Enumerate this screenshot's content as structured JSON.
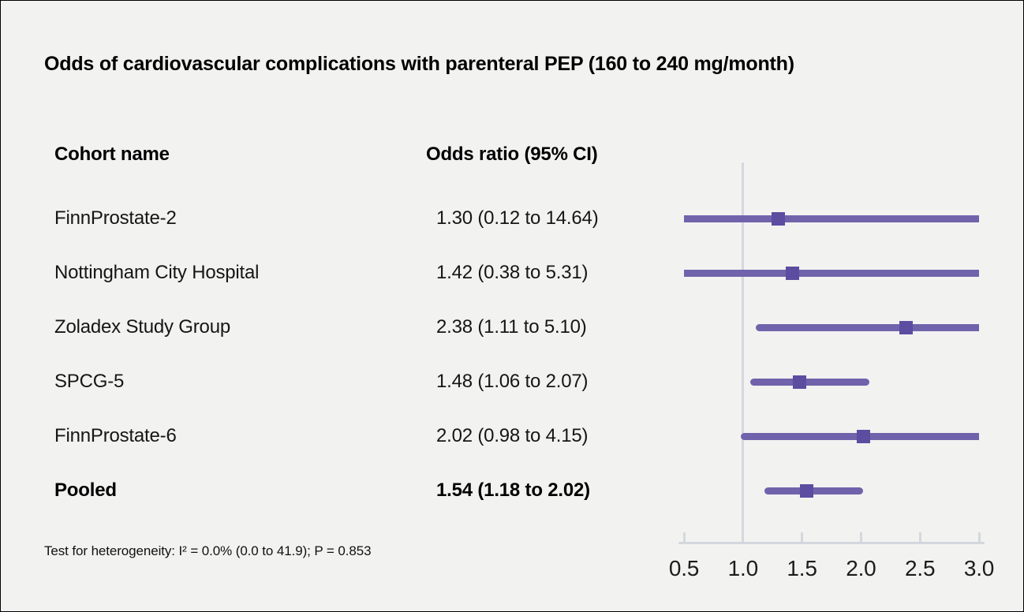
{
  "title": "Odds of cardiovascular complications with parenteral PEP (160 to 240 mg/month)",
  "table": {
    "col1_header": "Cohort name",
    "col2_header": "Odds ratio (95% CI)",
    "rows": [
      {
        "name": "FinnProstate-2",
        "value": "1.30 (0.12 to 14.64)",
        "bold": false
      },
      {
        "name": "Nottingham City Hospital",
        "value": "1.42 (0.38 to 5.31)",
        "bold": false
      },
      {
        "name": "Zoladex Study Group",
        "value": "2.38 (1.11 to 5.10)",
        "bold": false
      },
      {
        "name": "SPCG-5",
        "value": "1.48 (1.06 to 2.07)",
        "bold": false
      },
      {
        "name": "FinnProstate-6",
        "value": "2.02 (0.98 to 4.15)",
        "bold": false
      },
      {
        "name": "Pooled",
        "value": "1.54 (1.18 to 2.02)",
        "bold": true
      }
    ]
  },
  "footnote": "Test for heterogeneity: I² = 0.0% (0.0 to 41.9); P = 0.853",
  "chart_data": {
    "type": "forest",
    "title": "Odds of cardiovascular complications with parenteral PEP (160 to 240 mg/month)",
    "xlim": [
      0.5,
      3.0
    ],
    "ticks": [
      0.5,
      1.0,
      1.5,
      2.0,
      2.5,
      3.0
    ],
    "tick_labels": [
      "0.5",
      "1.0",
      "1.5",
      "2.0",
      "2.5",
      "3.0"
    ],
    "reference_line": 1.0,
    "series": [
      {
        "name": "FinnProstate-2",
        "or": 1.3,
        "ci_low": 0.12,
        "ci_high": 14.64,
        "pooled": false
      },
      {
        "name": "Nottingham City Hospital",
        "or": 1.42,
        "ci_low": 0.38,
        "ci_high": 5.31,
        "pooled": false
      },
      {
        "name": "Zoladex Study Group",
        "or": 2.38,
        "ci_low": 1.11,
        "ci_high": 5.1,
        "pooled": false
      },
      {
        "name": "SPCG-5",
        "or": 1.48,
        "ci_low": 1.06,
        "ci_high": 2.07,
        "pooled": false
      },
      {
        "name": "FinnProstate-6",
        "or": 2.02,
        "ci_low": 0.98,
        "ci_high": 4.15,
        "pooled": false
      },
      {
        "name": "Pooled",
        "or": 1.54,
        "ci_low": 1.18,
        "ci_high": 2.02,
        "pooled": true
      }
    ],
    "heterogeneity": "Test for heterogeneity: I² = 0.0% (0.0 to 41.9); P = 0.853",
    "colors": {
      "background": "#f2f2f1",
      "ci_line": "#7063ab",
      "marker": "#5c4da0",
      "axis": "#d4d8de",
      "text": "#1a1a1a"
    }
  }
}
